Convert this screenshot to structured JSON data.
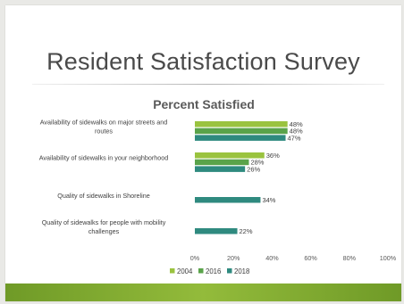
{
  "slide": {
    "title": "Resident Satisfaction Survey"
  },
  "chart_data": {
    "type": "bar",
    "orientation": "horizontal",
    "title": "Percent Satisfied",
    "categories": [
      [
        "Availability of sidewalks on major streets and",
        "routes"
      ],
      [
        "Availability of sidewalks in your neighborhood"
      ],
      [
        "Quality of sidewalks in Shoreline"
      ],
      [
        "Quality of sidewalks for people with mobility",
        "challenges"
      ]
    ],
    "series": [
      {
        "name": "2004",
        "color": "#9ac33f",
        "values": [
          48,
          36,
          null,
          null
        ]
      },
      {
        "name": "2016",
        "color": "#5aa34a",
        "values": [
          48,
          28,
          null,
          null
        ]
      },
      {
        "name": "2018",
        "color": "#2f8a7f",
        "values": [
          47,
          26,
          34,
          22
        ]
      }
    ],
    "value_suffix": "%",
    "xlim": [
      0,
      100
    ],
    "xticks": [
      "0%",
      "20%",
      "40%",
      "60%",
      "80%",
      "100%"
    ],
    "legend_position": "bottom",
    "grid": false
  }
}
